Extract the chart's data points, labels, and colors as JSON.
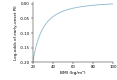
{
  "title": "",
  "xlabel": "BMI (kg/m²)",
  "ylabel": "Log-odds of early-onset PE",
  "xlim": [
    20,
    100
  ],
  "ylim": [
    -0.2,
    0.005
  ],
  "xticks": [
    20,
    40,
    60,
    80,
    100
  ],
  "yticks": [
    0.0,
    -0.05,
    -0.1,
    -0.15,
    -0.2
  ],
  "line_color": "#8ab8cc",
  "bg_color": "#ffffff",
  "bmi_min": 20,
  "bmi_max": 100,
  "a": -0.833,
  "c": 0.00833
}
